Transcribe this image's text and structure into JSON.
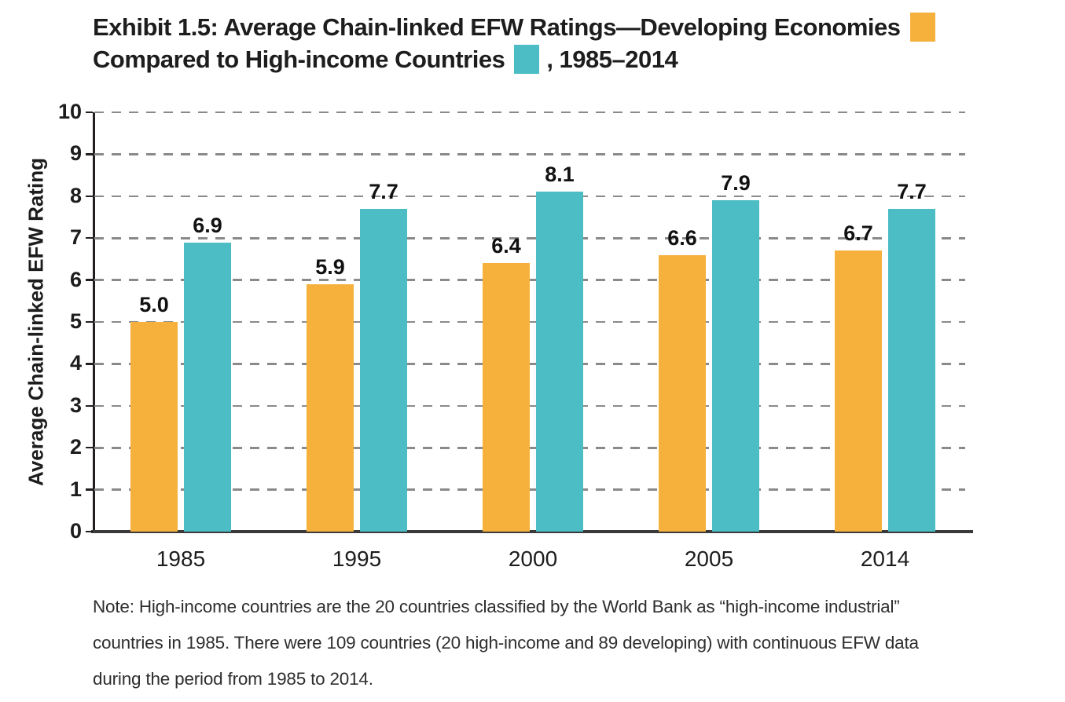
{
  "title": {
    "part1": "Exhibit 1.5: Average Chain-linked EFW Ratings—Developing Economies",
    "part2": "Compared to High-income Countries",
    "part3": ", 1985–2014"
  },
  "colors": {
    "developing": "#F6B13C",
    "high_income": "#4CBDC5",
    "axis": "#231F20",
    "gridline": "#8A8A8A",
    "bottom_axis": "#3A3A3A"
  },
  "chart_data": {
    "type": "bar",
    "categories": [
      "1985",
      "1995",
      "2000",
      "2005",
      "2014"
    ],
    "series": [
      {
        "name": "Developing Economies",
        "color_key": "developing",
        "values": [
          5.0,
          5.9,
          6.4,
          6.6,
          6.7
        ]
      },
      {
        "name": "High-income Countries",
        "color_key": "high_income",
        "values": [
          6.9,
          7.7,
          8.1,
          7.9,
          7.7
        ]
      }
    ],
    "title": "Exhibit 1.5: Average Chain-linked EFW Ratings—Developing Economies Compared to High-income Countries, 1985–2014",
    "xlabel": "",
    "ylabel": "Average Chain-linked EFW Rating",
    "ylim": [
      0,
      10
    ],
    "yticks": [
      0,
      1,
      2,
      3,
      4,
      5,
      6,
      7,
      8,
      9,
      10
    ],
    "grid": "horizontal dashed",
    "legend_position": "inline swatches in title",
    "value_label_format": "one decimal"
  },
  "note": {
    "lines": [
      "Note: High-income countries are the 20 countries classified by the World Bank as “high-income industrial”",
      "countries in 1985. There were 109 countries (20 high-income and 89 developing) with continuous EFW data",
      "during the period from 1985 to 2014."
    ]
  }
}
